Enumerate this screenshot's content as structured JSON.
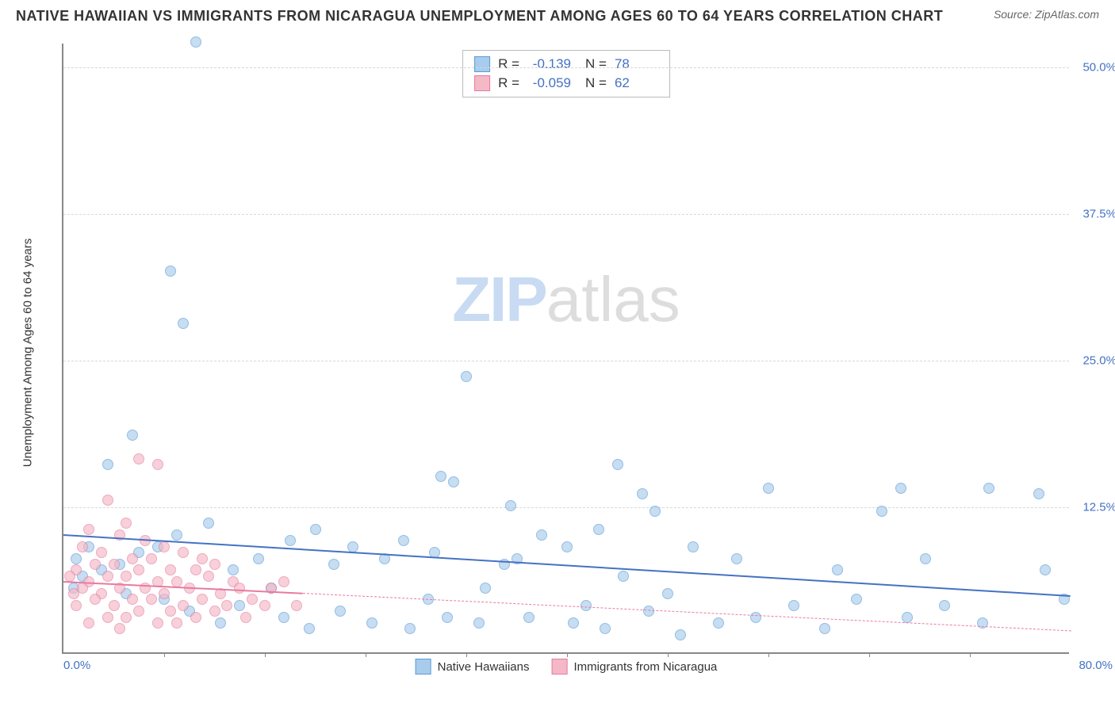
{
  "title": "NATIVE HAWAIIAN VS IMMIGRANTS FROM NICARAGUA UNEMPLOYMENT AMONG AGES 60 TO 64 YEARS CORRELATION CHART",
  "source": "Source: ZipAtlas.com",
  "watermark": {
    "part1": "ZIP",
    "part2": "atlas"
  },
  "chart": {
    "type": "scatter",
    "y_axis_label": "Unemployment Among Ages 60 to 64 years",
    "xlim": [
      0,
      80
    ],
    "ylim": [
      0,
      52
    ],
    "x_ticks_labeled": [
      {
        "pos": 0,
        "label": "0.0%"
      },
      {
        "pos": 80,
        "label": "80.0%"
      }
    ],
    "x_tick_marks": [
      8,
      16,
      24,
      32,
      40,
      48,
      56,
      64,
      72
    ],
    "y_ticks_labeled": [
      {
        "pos": 12.5,
        "label": "12.5%"
      },
      {
        "pos": 25.0,
        "label": "25.0%"
      },
      {
        "pos": 37.5,
        "label": "37.5%"
      },
      {
        "pos": 50.0,
        "label": "50.0%"
      }
    ],
    "grid_color": "#d8d8d8",
    "background_color": "#ffffff",
    "series": [
      {
        "name": "Native Hawaiians",
        "fill": "#a8ccec",
        "stroke": "#5b9bd5",
        "opacity": 0.65,
        "marker_radius": 7,
        "r_label": "R =",
        "r_value": "-0.139",
        "n_label": "N =",
        "n_value": "78",
        "trend": {
          "x1": 0,
          "y1": 10.2,
          "x2": 80,
          "y2": 5.0,
          "solid_until_x": 80,
          "color": "#4472c4"
        },
        "points": [
          [
            10.5,
            52.0
          ],
          [
            8.5,
            32.5
          ],
          [
            9.5,
            28.0
          ],
          [
            5.5,
            18.5
          ],
          [
            3.5,
            16.0
          ],
          [
            32.0,
            23.5
          ],
          [
            30.0,
            15.0
          ],
          [
            31.0,
            14.5
          ],
          [
            35.5,
            12.5
          ],
          [
            44.0,
            16.0
          ],
          [
            46.0,
            13.5
          ],
          [
            56.0,
            14.0
          ],
          [
            66.5,
            14.0
          ],
          [
            73.5,
            14.0
          ],
          [
            77.5,
            13.5
          ],
          [
            65.0,
            12.0
          ],
          [
            47.0,
            12.0
          ],
          [
            42.5,
            10.5
          ],
          [
            40.0,
            9.0
          ],
          [
            38.0,
            10.0
          ],
          [
            36.0,
            8.0
          ],
          [
            35.0,
            7.5
          ],
          [
            29.5,
            8.5
          ],
          [
            27.0,
            9.5
          ],
          [
            25.5,
            8.0
          ],
          [
            23.0,
            9.0
          ],
          [
            21.5,
            7.5
          ],
          [
            20.0,
            10.5
          ],
          [
            18.0,
            9.5
          ],
          [
            15.5,
            8.0
          ],
          [
            13.5,
            7.0
          ],
          [
            11.5,
            11.0
          ],
          [
            9.0,
            10.0
          ],
          [
            7.5,
            9.0
          ],
          [
            6.0,
            8.5
          ],
          [
            4.5,
            7.5
          ],
          [
            3.0,
            7.0
          ],
          [
            2.0,
            9.0
          ],
          [
            1.5,
            6.5
          ],
          [
            1.0,
            8.0
          ],
          [
            0.8,
            5.5
          ],
          [
            5.0,
            5.0
          ],
          [
            8.0,
            4.5
          ],
          [
            10.0,
            3.5
          ],
          [
            12.5,
            2.5
          ],
          [
            14.0,
            4.0
          ],
          [
            17.5,
            3.0
          ],
          [
            19.5,
            2.0
          ],
          [
            22.0,
            3.5
          ],
          [
            24.5,
            2.5
          ],
          [
            27.5,
            2.0
          ],
          [
            30.5,
            3.0
          ],
          [
            33.0,
            2.5
          ],
          [
            37.0,
            3.0
          ],
          [
            40.5,
            2.5
          ],
          [
            43.0,
            2.0
          ],
          [
            46.5,
            3.5
          ],
          [
            49.0,
            1.5
          ],
          [
            52.0,
            2.5
          ],
          [
            55.0,
            3.0
          ],
          [
            58.0,
            4.0
          ],
          [
            60.5,
            2.0
          ],
          [
            63.0,
            4.5
          ],
          [
            67.0,
            3.0
          ],
          [
            70.0,
            4.0
          ],
          [
            73.0,
            2.5
          ],
          [
            78.0,
            7.0
          ],
          [
            79.5,
            4.5
          ],
          [
            50.0,
            9.0
          ],
          [
            53.5,
            8.0
          ],
          [
            44.5,
            6.5
          ],
          [
            48.0,
            5.0
          ],
          [
            33.5,
            5.5
          ],
          [
            29.0,
            4.5
          ],
          [
            16.5,
            5.5
          ],
          [
            61.5,
            7.0
          ],
          [
            68.5,
            8.0
          ],
          [
            41.5,
            4.0
          ]
        ]
      },
      {
        "name": "Immigrants from Nicaragua",
        "fill": "#f4b8c6",
        "stroke": "#e87ba0",
        "opacity": 0.65,
        "marker_radius": 7,
        "r_label": "R =",
        "r_value": "-0.059",
        "n_label": "N =",
        "n_value": "62",
        "trend": {
          "x1": 0,
          "y1": 6.2,
          "x2": 80,
          "y2": 2.0,
          "solid_until_x": 19,
          "color": "#e87ba0"
        },
        "points": [
          [
            6.0,
            16.5
          ],
          [
            7.5,
            16.0
          ],
          [
            3.5,
            13.0
          ],
          [
            5.0,
            11.0
          ],
          [
            2.0,
            10.5
          ],
          [
            4.5,
            10.0
          ],
          [
            6.5,
            9.5
          ],
          [
            8.0,
            9.0
          ],
          [
            1.5,
            9.0
          ],
          [
            3.0,
            8.5
          ],
          [
            5.5,
            8.0
          ],
          [
            7.0,
            8.0
          ],
          [
            9.5,
            8.5
          ],
          [
            11.0,
            8.0
          ],
          [
            2.5,
            7.5
          ],
          [
            4.0,
            7.5
          ],
          [
            6.0,
            7.0
          ],
          [
            8.5,
            7.0
          ],
          [
            10.5,
            7.0
          ],
          [
            12.0,
            7.5
          ],
          [
            1.0,
            7.0
          ],
          [
            3.5,
            6.5
          ],
          [
            5.0,
            6.5
          ],
          [
            7.5,
            6.0
          ],
          [
            9.0,
            6.0
          ],
          [
            11.5,
            6.5
          ],
          [
            13.5,
            6.0
          ],
          [
            0.5,
            6.5
          ],
          [
            2.0,
            6.0
          ],
          [
            4.5,
            5.5
          ],
          [
            6.5,
            5.5
          ],
          [
            8.0,
            5.0
          ],
          [
            10.0,
            5.5
          ],
          [
            12.5,
            5.0
          ],
          [
            14.0,
            5.5
          ],
          [
            1.5,
            5.5
          ],
          [
            3.0,
            5.0
          ],
          [
            5.5,
            4.5
          ],
          [
            7.0,
            4.5
          ],
          [
            9.5,
            4.0
          ],
          [
            11.0,
            4.5
          ],
          [
            13.0,
            4.0
          ],
          [
            15.0,
            4.5
          ],
          [
            0.8,
            5.0
          ],
          [
            2.5,
            4.5
          ],
          [
            4.0,
            4.0
          ],
          [
            6.0,
            3.5
          ],
          [
            8.5,
            3.5
          ],
          [
            10.5,
            3.0
          ],
          [
            12.0,
            3.5
          ],
          [
            14.5,
            3.0
          ],
          [
            16.0,
            4.0
          ],
          [
            1.0,
            4.0
          ],
          [
            3.5,
            3.0
          ],
          [
            5.0,
            3.0
          ],
          [
            7.5,
            2.5
          ],
          [
            9.0,
            2.5
          ],
          [
            16.5,
            5.5
          ],
          [
            17.5,
            6.0
          ],
          [
            18.5,
            4.0
          ],
          [
            2.0,
            2.5
          ],
          [
            4.5,
            2.0
          ]
        ]
      }
    ]
  }
}
